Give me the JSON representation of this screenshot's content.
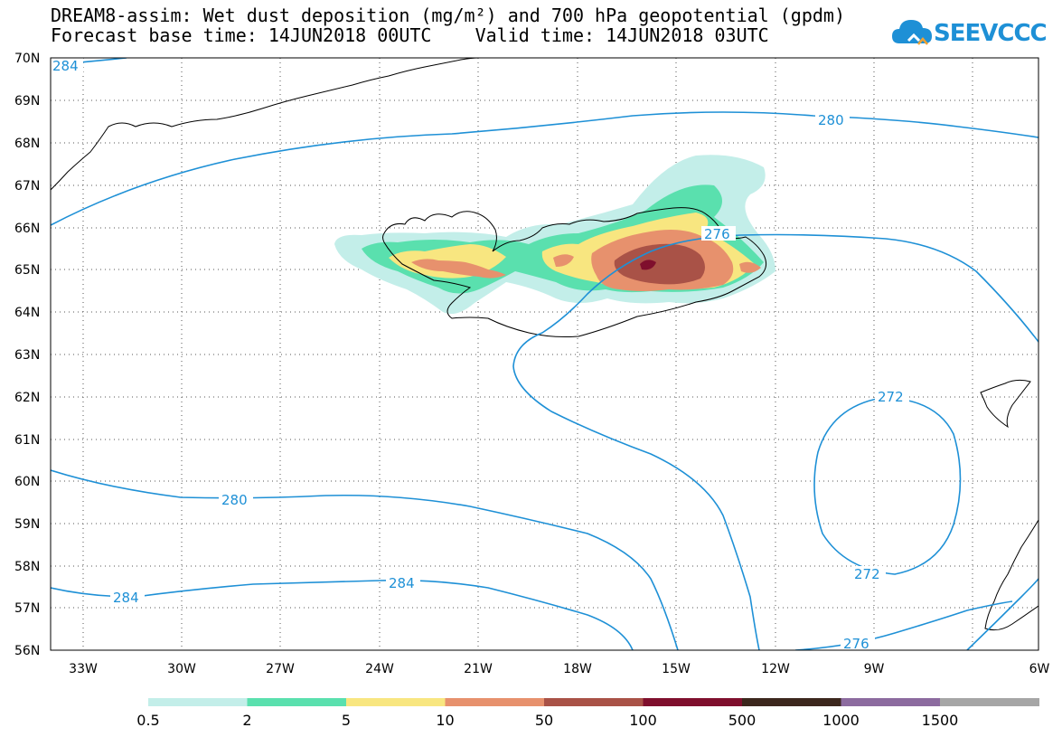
{
  "header": {
    "title_line1": "DREAM8-assim: Wet dust deposition (mg/m²) and 700 hPa geopotential (gpdm)",
    "title_line2": "Forecast base time: 14JUN2018 00UTC    Valid time: 14JUN2018 03UTC"
  },
  "logo": {
    "text": "SEEVCCC",
    "icon": "cloud-icon",
    "color": "#1e90d6"
  },
  "map": {
    "projection": "lat-lon",
    "grid": "dotted",
    "lat_labels": [
      "70N",
      "69N",
      "68N",
      "67N",
      "66N",
      "65N",
      "64N",
      "63N",
      "62N",
      "61N",
      "60N",
      "59N",
      "58N",
      "57N",
      "56N"
    ],
    "lon_labels": [
      "33W",
      "30W",
      "27W",
      "24W",
      "21W",
      "18W",
      "15W",
      "12W",
      "9W",
      "6W"
    ],
    "contour_color": "#1e90d6",
    "coastline_color": "#000000",
    "contour_labels": [
      {
        "id": "c284-top",
        "text": "284"
      },
      {
        "id": "c280-north",
        "text": "280"
      },
      {
        "id": "c276-iceland",
        "text": "276"
      },
      {
        "id": "c272-top",
        "text": "272"
      },
      {
        "id": "c272-bottom",
        "text": "272"
      },
      {
        "id": "c280-south",
        "text": "280"
      },
      {
        "id": "c284-south-left",
        "text": "284"
      },
      {
        "id": "c284-south-mid",
        "text": "284"
      },
      {
        "id": "c276-south",
        "text": "276"
      }
    ]
  },
  "legend": {
    "colors": [
      "#c3eee9",
      "#5ae0ae",
      "#f8e680",
      "#e7916d",
      "#a95247",
      "#7f0f2d",
      "#3c271d",
      "#8c6b9f",
      "#a6a6a6"
    ],
    "labels": [
      "0.5",
      "2",
      "5",
      "10",
      "50",
      "100",
      "500",
      "1000",
      "1500"
    ]
  }
}
